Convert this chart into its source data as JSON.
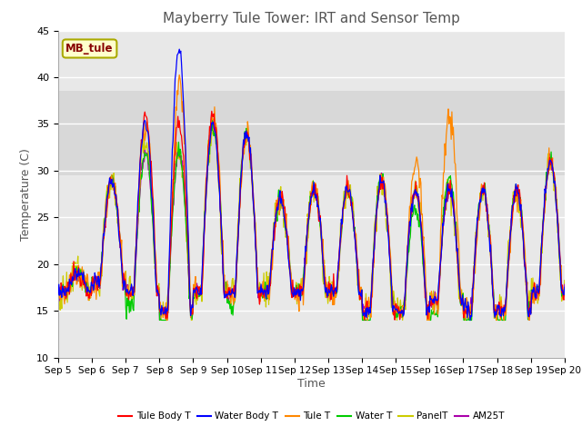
{
  "title": "Mayberry Tule Tower: IRT and Sensor Temp",
  "xlabel": "Time",
  "ylabel": "Temperature (C)",
  "ylim": [
    10,
    45
  ],
  "xlim": [
    0,
    15
  ],
  "x_tick_labels": [
    "Sep 5",
    "Sep 6",
    "Sep 7",
    "Sep 8",
    "Sep 9",
    "Sep 10",
    "Sep 11",
    "Sep 12",
    "Sep 13",
    "Sep 14",
    "Sep 15",
    "Sep 16",
    "Sep 17",
    "Sep 18",
    "Sep 19",
    "Sep 20"
  ],
  "legend_entries": [
    "Tule Body T",
    "Water Body T",
    "Tule T",
    "Water T",
    "PanelT",
    "AM25T"
  ],
  "line_colors": [
    "#ff0000",
    "#0000ff",
    "#ff8800",
    "#00cc00",
    "#cccc00",
    "#aa00aa"
  ],
  "annotation_text": "MB_tule",
  "bg_color": "#e8e8e8",
  "grid_color": "#ffffff",
  "title_fontsize": 11,
  "band_ymin": 29.5,
  "band_ymax": 38.5,
  "band_color": "#d8d8d8"
}
